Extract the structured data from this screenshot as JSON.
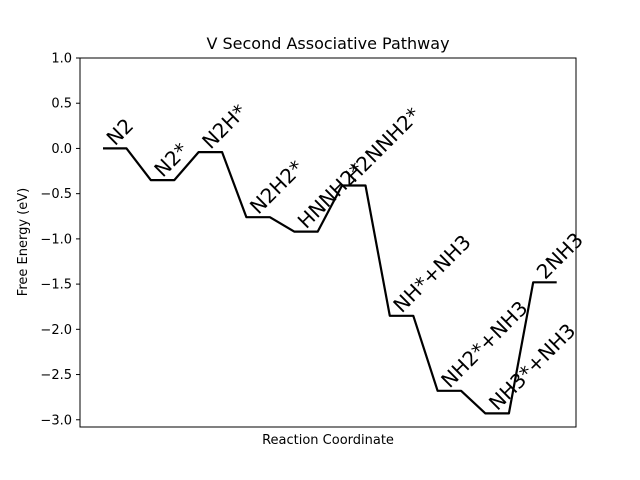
{
  "chart_data": {
    "type": "line",
    "title": "V Second Associative Pathway",
    "xlabel": "Reaction Coordinate",
    "ylabel": "Free Energy (eV)",
    "ylim": [
      -3.08,
      1.0
    ],
    "yticks": [
      1.0,
      0.5,
      0.0,
      -0.5,
      -1.0,
      -1.5,
      -2.0,
      -2.5,
      -3.0
    ],
    "ytick_labels": [
      "1.0",
      "0.5",
      "0.0",
      "−0.5",
      "−1.0",
      "−1.5",
      "−2.0",
      "−2.5",
      "−3.0"
    ],
    "xticks": [],
    "grid": false,
    "line_color": "#000000",
    "states": [
      {
        "label": "N2",
        "energy": 0.0
      },
      {
        "label": "N2*",
        "energy": -0.35
      },
      {
        "label": "N2H*",
        "energy": -0.04
      },
      {
        "label": "N2H2*",
        "energy": -0.76
      },
      {
        "label": "HNNH2*",
        "energy": -0.92
      },
      {
        "label": "H2NNH2*",
        "energy": -0.41
      },
      {
        "label": "NH*+NH3",
        "energy": -1.85
      },
      {
        "label": "NH2*+NH3",
        "energy": -2.68
      },
      {
        "label": "NH3*+NH3",
        "energy": -2.93
      },
      {
        "label": "2NH3",
        "energy": -1.48
      }
    ]
  }
}
